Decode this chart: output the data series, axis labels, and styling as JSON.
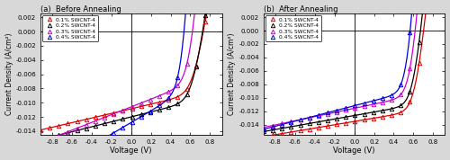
{
  "title_a": "(a)  Before Annealing",
  "title_b": "(b)  After Annealing",
  "xlabel": "Voltage (V)",
  "ylabel": "Current Density (A/cm²)",
  "xlim": [
    -0.92,
    0.92
  ],
  "ylim_a": [
    -0.0145,
    0.0025
  ],
  "ylim_b": [
    -0.0155,
    0.0025
  ],
  "yticks": [
    0.002,
    0.0,
    -0.002,
    -0.004,
    -0.006,
    -0.008,
    -0.01,
    -0.012,
    -0.014
  ],
  "xticks": [
    -0.8,
    -0.6,
    -0.4,
    -0.2,
    0.0,
    0.2,
    0.4,
    0.6,
    0.8
  ],
  "legend_labels": [
    "0.1% SWCNT-4",
    "0.2% SWCNT-4",
    "0.3% SWCNT-4",
    "0.4% SWCNT-4"
  ],
  "colors": [
    "#dd0000",
    "#000000",
    "#cc00cc",
    "#0000dd"
  ],
  "background_color": "#ffffff",
  "outer_background": "#d8d8d8",
  "params_a": [
    [
      0.01115,
      2e-09,
      1.85,
      8.0,
      300
    ],
    [
      0.0123,
      2e-09,
      1.82,
      7.0,
      280
    ],
    [
      0.0108,
      8e-09,
      1.75,
      3.5,
      180
    ],
    [
      0.013,
      3e-08,
      1.65,
      2.0,
      120
    ]
  ],
  "params_b": [
    [
      0.0137,
      5e-10,
      1.6,
      5.0,
      400
    ],
    [
      0.0128,
      8e-10,
      1.58,
      4.5,
      380
    ],
    [
      0.0117,
      2e-09,
      1.55,
      3.5,
      320
    ],
    [
      0.0113,
      5e-09,
      1.52,
      2.5,
      260
    ]
  ]
}
